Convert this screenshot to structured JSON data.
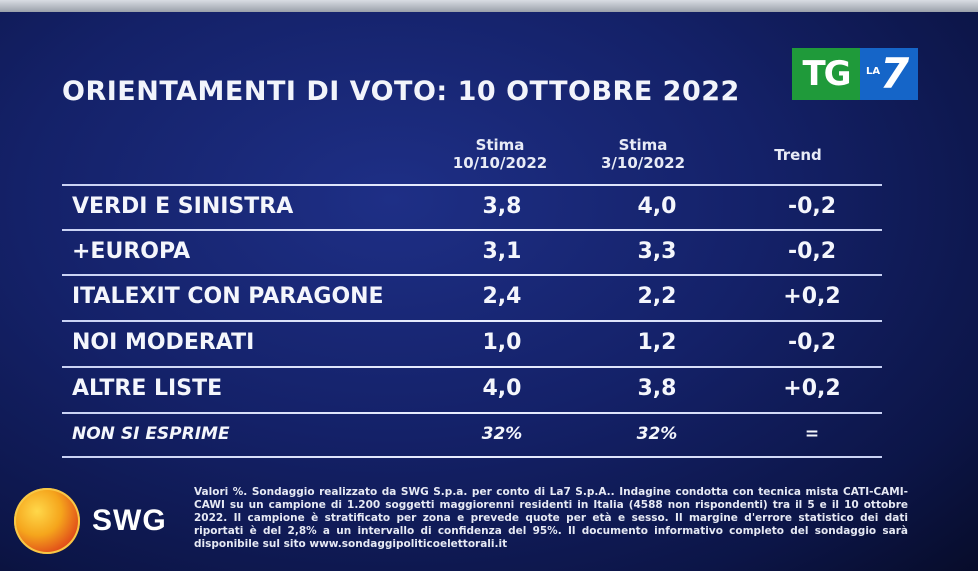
{
  "title": "ORIENTAMENTI DI VOTO: 10 OTTOBRE 2022",
  "logo": {
    "tg": "TG",
    "la": "LA",
    "seven": "7"
  },
  "columns": {
    "c1_line1": "Stima",
    "c1_line2": "10/10/2022",
    "c2_line1": "Stima",
    "c2_line2": "3/10/2022",
    "c3": "Trend"
  },
  "rows": [
    {
      "label": "VERDI E SINISTRA",
      "v1": "3,8",
      "v2": "4,0",
      "trend": "-0,2"
    },
    {
      "label": "+EUROPA",
      "v1": "3,1",
      "v2": "3,3",
      "trend": "-0,2"
    },
    {
      "label": "ITALEXIT CON PARAGONE",
      "v1": "2,4",
      "v2": "2,2",
      "trend": "+0,2"
    },
    {
      "label": "NOI MODERATI",
      "v1": "1,0",
      "v2": "1,2",
      "trend": "-0,2"
    },
    {
      "label": "ALTRE LISTE",
      "v1": "4,0",
      "v2": "3,8",
      "trend": "+0,2"
    },
    {
      "label": "NON SI ESPRIME",
      "v1": "32%",
      "v2": "32%",
      "trend": "="
    }
  ],
  "swg": {
    "name": "SWG"
  },
  "footnote": "Valori %. Sondaggio realizzato da SWG S.p.a. per conto di La7 S.p.A.. Indagine condotta con tecnica mista CATI-CAMI-CAWI su un campione di 1.200 soggetti maggiorenni residenti in Italia (4588 non rispondenti) tra il 5 e il 10 ottobre 2022. Il campione è stratificato per zona e prevede quote per età e sesso. Il margine d'errore statistico dei dati riportati è del 2,8% a un intervallo di confidenza del 95%. Il documento informativo completo del sondaggio sarà disponibile sul sito www.sondaggipoliticoelettorali.it"
}
